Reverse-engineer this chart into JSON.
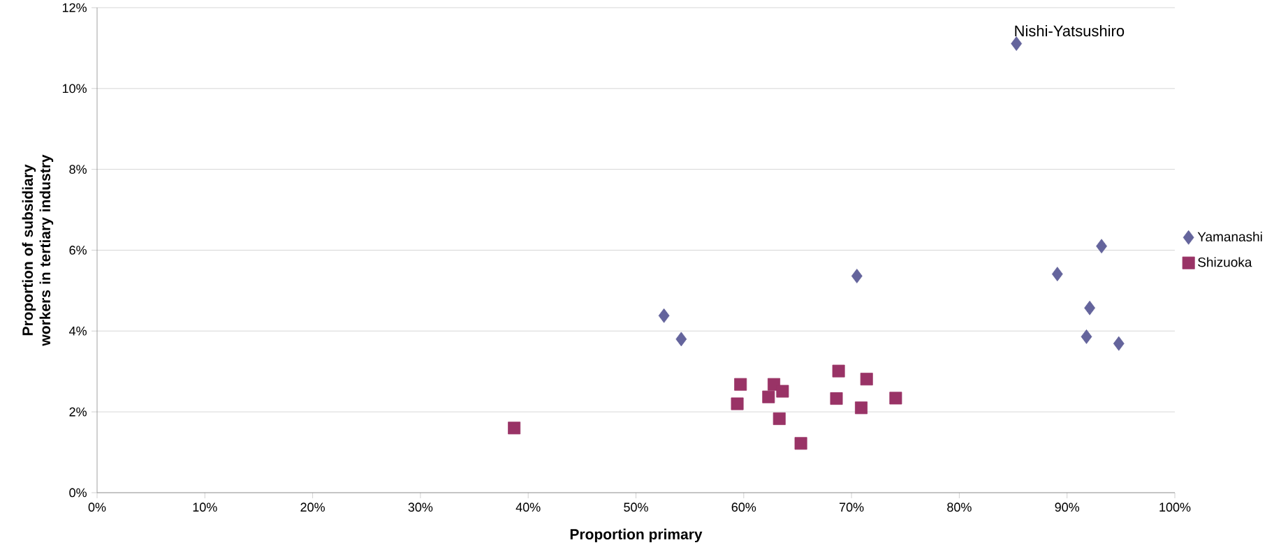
{
  "chart_data": {
    "type": "scatter",
    "xlabel": "Proportion primary",
    "ylabel": "Proportion of subsidiary workers in tertiary industry",
    "xlim": [
      0,
      100
    ],
    "ylim": [
      0,
      12
    ],
    "xticks": [
      {
        "value": 0,
        "label": "0%"
      },
      {
        "value": 10,
        "label": "10%"
      },
      {
        "value": 20,
        "label": "20%"
      },
      {
        "value": 30,
        "label": "30%"
      },
      {
        "value": 40,
        "label": "40%"
      },
      {
        "value": 50,
        "label": "50%"
      },
      {
        "value": 60,
        "label": "60%"
      },
      {
        "value": 70,
        "label": "70%"
      },
      {
        "value": 80,
        "label": "80%"
      },
      {
        "value": 90,
        "label": "90%"
      },
      {
        "value": 100,
        "label": "100%"
      }
    ],
    "yticks": [
      {
        "value": 0,
        "label": "0%"
      },
      {
        "value": 2,
        "label": "2%"
      },
      {
        "value": 4,
        "label": "4%"
      },
      {
        "value": 6,
        "label": "6%"
      },
      {
        "value": 8,
        "label": "8%"
      },
      {
        "value": 10,
        "label": "10%"
      },
      {
        "value": 12,
        "label": "12%"
      }
    ],
    "grid": "y",
    "legend": "right",
    "series": [
      {
        "name": "Yamanashi",
        "color": "#64649c",
        "marker": "diamond",
        "x": [
          52.6,
          54.2,
          70.5,
          85.3,
          93.2,
          89.1,
          92.1,
          91.8,
          94.8
        ],
        "values": [
          4.38,
          3.8,
          5.36,
          11.11,
          6.1,
          5.41,
          4.57,
          3.86,
          3.69
        ]
      },
      {
        "name": "Shizuoka",
        "color": "#993366",
        "marker": "square",
        "x": [
          38.7,
          59.7,
          59.4,
          62.8,
          62.3,
          63.6,
          63.3,
          65.3,
          68.8,
          68.6,
          71.4,
          70.9,
          74.1
        ],
        "values": [
          1.6,
          2.68,
          2.2,
          2.68,
          2.37,
          2.51,
          1.83,
          1.22,
          3.01,
          2.33,
          2.81,
          2.1,
          2.34
        ]
      }
    ],
    "annotations": [
      {
        "text": "Nishi-Yatsushiro",
        "x": 85.3,
        "y": 11.11
      }
    ]
  }
}
